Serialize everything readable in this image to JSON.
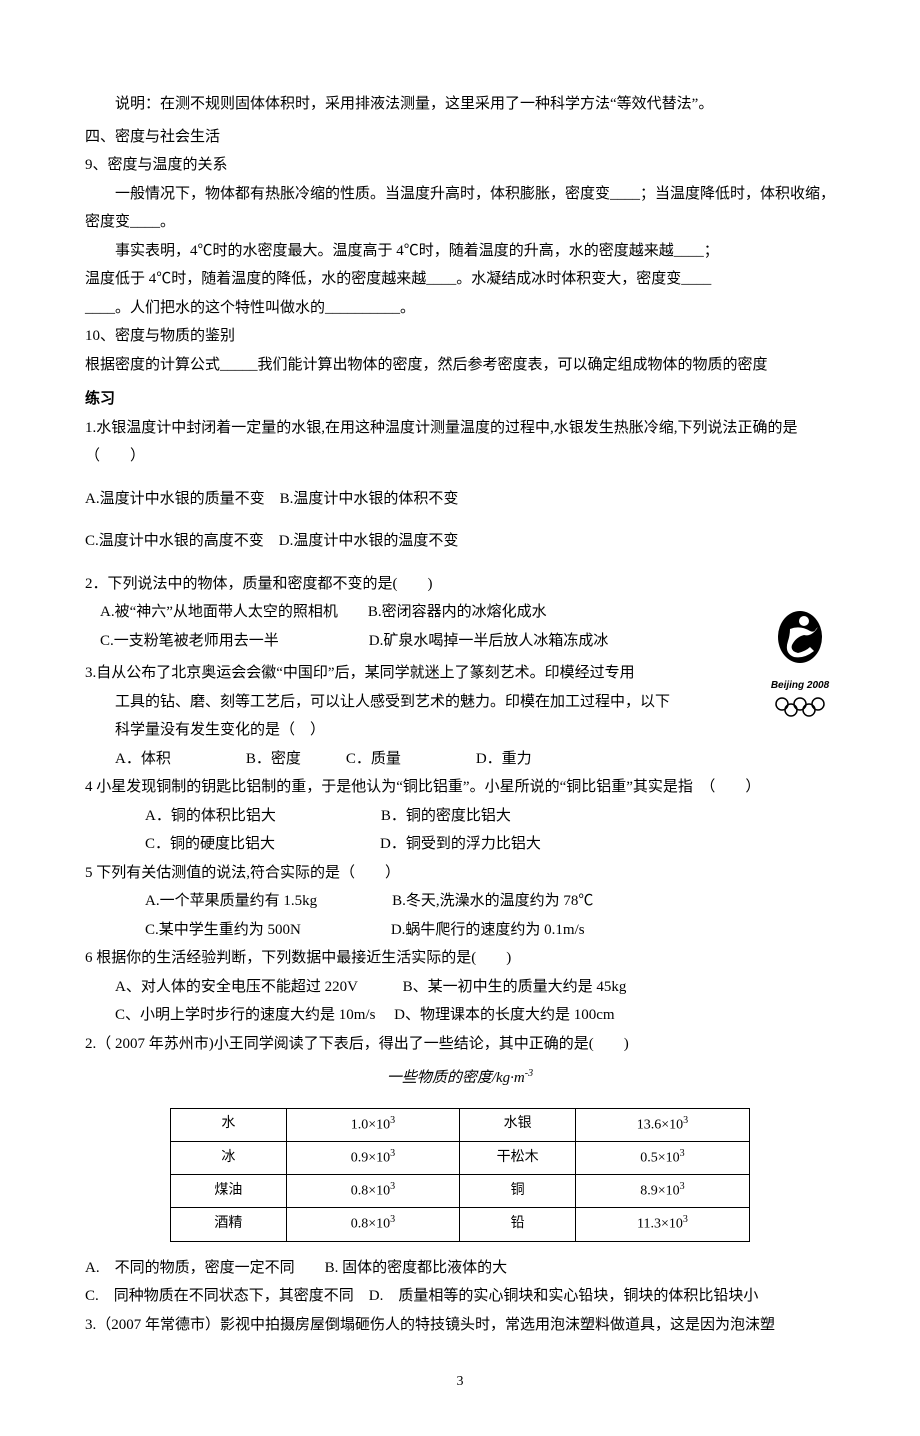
{
  "intro_note": "说明：在测不规则固体体积时，采用排液法测量，这里采用了一种科学方法“等效代替法”。",
  "section4_title": "四、密度与社会生活",
  "item9_title": "9、密度与温度的关系",
  "item9_p1": "一般情况下，物体都有热胀冷缩的性质。当温度升高时，体积膨胀，密度变____；当温度降低时，体积收缩，密度变____。",
  "item9_p2": "事实表明，4℃时的水密度最大。温度高于 4℃时，随着温度的升高，水的密度越来越____；",
  "item9_p3": "温度低于 4℃时，随着温度的降低，水的密度越来越____。水凝结成冰时体积变大，密度变____",
  "item9_p4": "____。人们把水的这个特性叫做水的__________。",
  "item10_title": "10、密度与物质的鉴别",
  "item10_p1": "根据密度的计算公式_____我们能计算出物体的密度，然后参考密度表，可以确定组成物体的物质的密度",
  "exercise_heading": "练习",
  "q1_stem": "1.水银温度计中封闭着一定量的水银,在用这种温度计测量温度的过程中,水银发生热胀冷缩,下列说法正确的是（　　）",
  "q1_ab": "A.温度计中水银的质量不变　B.温度计中水银的体积不变",
  "q1_cd": "C.温度计中水银的高度不变　D.温度计中水银的温度不变",
  "q2_stem": "2．下列说法中的物体，质量和密度都不变的是(　　)",
  "q2_ab": "A.被“神六”从地面带人太空的照相机　　B.密闭容器内的冰熔化成水",
  "q2_cd": "C.一支粉笔被老师用去一半　　　　　　D.矿泉水喝掉一半后放人冰箱冻成冰",
  "q3_l1": "3.自从公布了北京奥运会会徽“中国印”后，某同学就迷上了篆刻艺术。印模经过专用",
  "q3_l2": "工具的钻、磨、刻等工艺后，可以让人感受到艺术的魅力。印模在加工过程中，以下",
  "q3_l3": "科学量没有发生变化的是（　）",
  "q3_opts": "A．体积　　　　　B．密度　　　C．质量　　　　　D．重力",
  "q4_stem": "4 小星发现铜制的钥匙比铝制的重，于是他认为“铜比铝重”。小星所说的“铜比铝重”其实是指　（　　）",
  "q4_ab": "A．铜的体积比铝大　　　　　　　B．铜的密度比铝大",
  "q4_cd": "C．铜的硬度比铝大　　　　　　　D．铜受到的浮力比铝大",
  "q5_stem": "5 下列有关估测值的说法,符合实际的是（　　）",
  "q5_ab": "A.一个苹果质量约有 1.5kg　　　　　B.冬天,洗澡水的温度约为 78℃",
  "q5_cd": "C.某中学生重约为 500N　　　　　　D.蜗牛爬行的速度约为 0.1m/s",
  "q6_stem": "6 根据你的生活经验判断，下列数据中最接近生活实际的是(　　)",
  "q6_ab": "A、对人体的安全电压不能超过 220V　　　B、某一初中生的质量大约是 45kg",
  "q6_cd": "C、小明上学时步行的速度大约是 10m/s　 D、物理课本的长度大约是 100cm",
  "q_table_stem": "2.（ 2007 年苏州市)小王同学阅读了下表后，得出了一些结论，其中正确的是(　　)",
  "table_caption": "一些物质的密度/kg·m",
  "table_caption_sup": "-3",
  "density_table": {
    "rows": [
      [
        "水",
        "1.0×10",
        "3",
        "水银",
        "13.6×10",
        "3"
      ],
      [
        "冰",
        "0.9×10",
        "3",
        "干松木",
        "0.5×10",
        "3"
      ],
      [
        "煤油",
        "0.8×10",
        "3",
        "铜",
        "8.9×10",
        "3"
      ],
      [
        "酒精",
        "0.8×10",
        "3",
        "铅",
        "11.3×10",
        "3"
      ]
    ]
  },
  "after_table_l1": "A.　不同的物质，密度一定不同　　B. 固体的密度都比液体的大",
  "after_table_l2": "C.　同种物质在不同状态下，其密度不同　D.　质量相等的实心铜块和实心铅块，铜块的体积比铅块小",
  "q_last": "3.（2007 年常德市）影视中拍摄房屋倒塌砸伤人的特技镜头时，常选用泡沫塑料做道具，这是因为泡沫塑",
  "logo_text": "Beijing 2008",
  "page_number": "3"
}
